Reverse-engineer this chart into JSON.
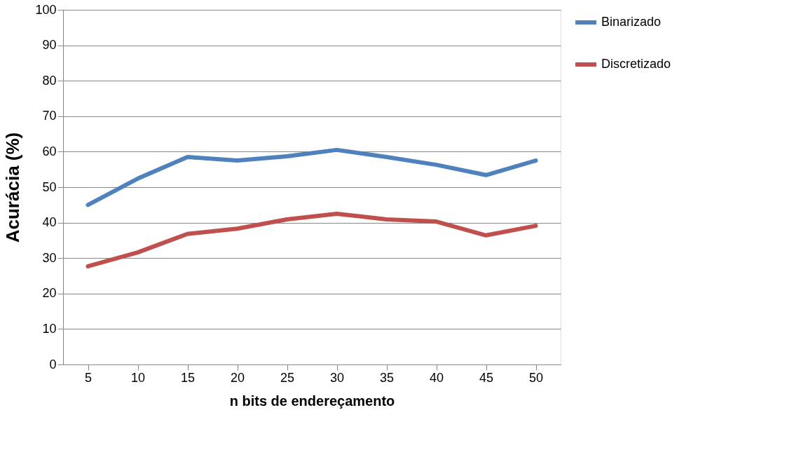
{
  "chart_data": {
    "type": "line",
    "xlabel": "n bits de endereçamento",
    "ylabel": "Acurácia (%)",
    "categories": [
      "5",
      "10",
      "15",
      "20",
      "25",
      "30",
      "35",
      "40",
      "45",
      "50"
    ],
    "series": [
      {
        "name": "Binarizado",
        "color": "#4f81bd",
        "values": [
          45,
          52.4,
          58.5,
          57.5,
          58.7,
          60.5,
          58.5,
          56.3,
          53.4,
          57.5
        ]
      },
      {
        "name": "Discretizado",
        "color": "#c0504d",
        "values": [
          27.7,
          31.6,
          36.8,
          38.3,
          40.9,
          42.5,
          40.9,
          40.3,
          36.4,
          39.1
        ]
      }
    ],
    "ylim": [
      0,
      100
    ],
    "yticks": [
      0,
      10,
      20,
      30,
      40,
      50,
      60,
      70,
      80,
      90,
      100
    ],
    "grid": "y",
    "legend": "right",
    "marker": "none",
    "line_style": "solid"
  }
}
